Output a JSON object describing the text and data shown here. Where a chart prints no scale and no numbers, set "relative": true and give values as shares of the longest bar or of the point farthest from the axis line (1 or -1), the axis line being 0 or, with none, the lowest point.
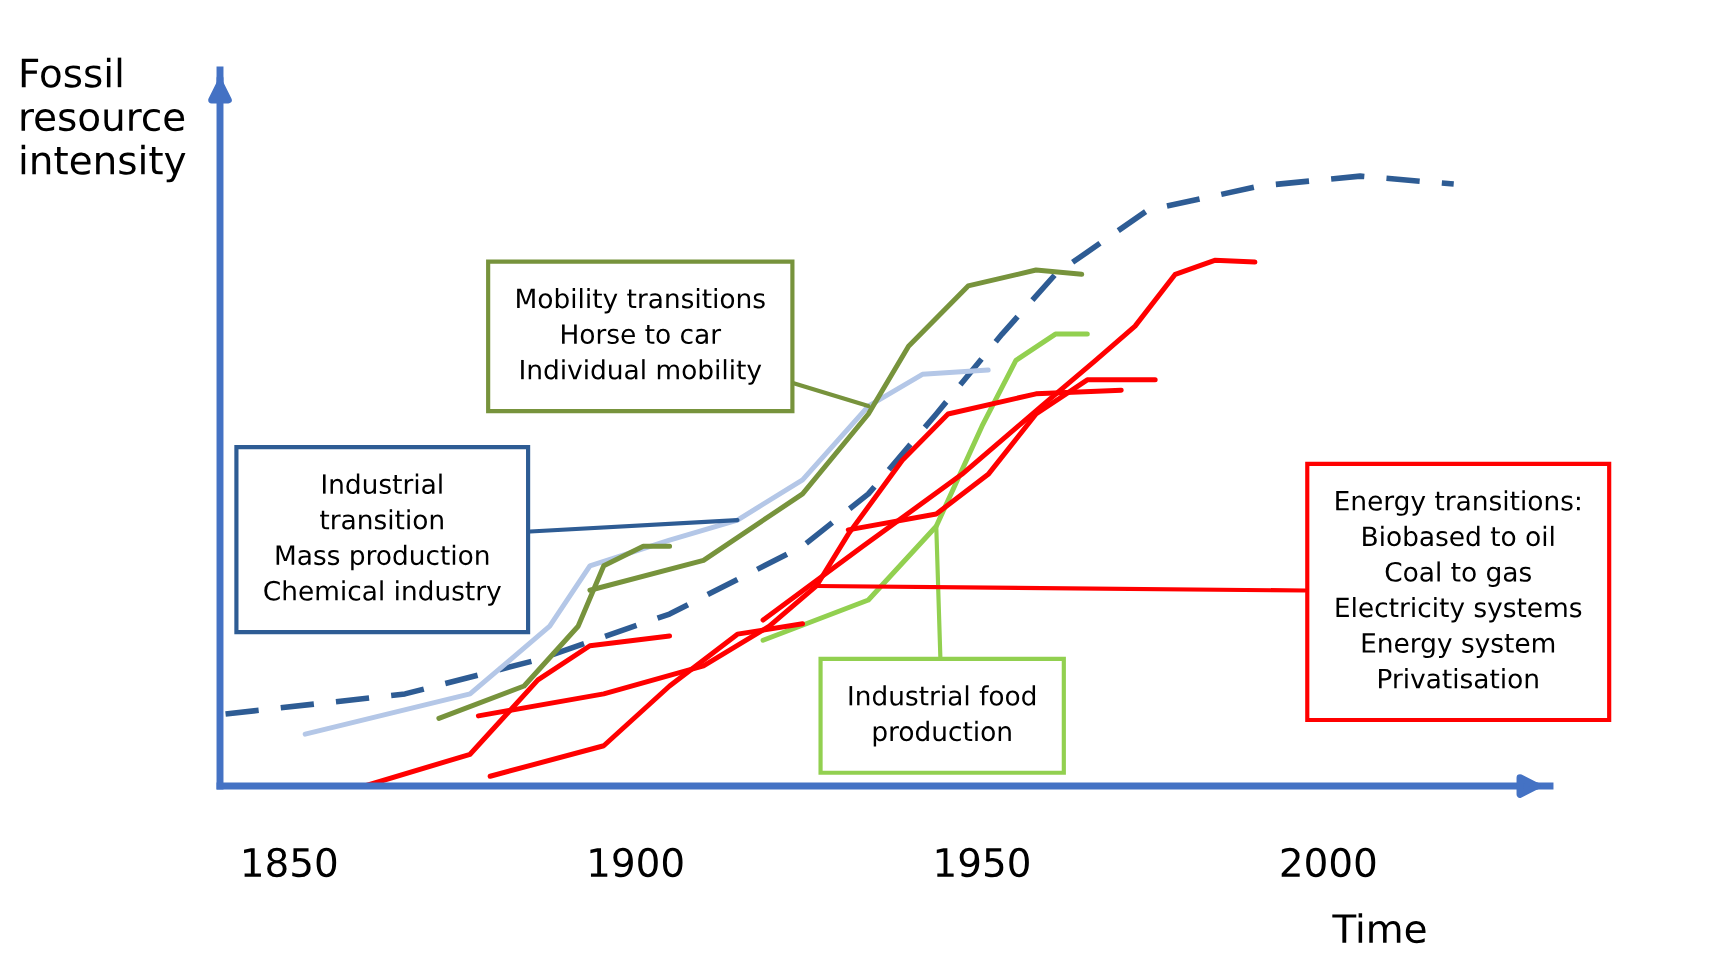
{
  "chart_data": {
    "type": "line",
    "relative": true,
    "xlabel": "Time",
    "ylabel": "Fossil resource intensity",
    "xlim": [
      1840,
      2032
    ],
    "xticks": [
      1850,
      1900,
      1950,
      2000
    ],
    "grid": false,
    "marker": "none",
    "series": [
      {
        "color": "#2e5c94",
        "line_style": "dashed",
        "x": [
          1840.8,
          1866.7,
          1885.9,
          1904.9,
          1924.1,
          1933.6,
          1943.4,
          1952.9,
          1960.6,
          1973.9,
          1990.2,
          2004.6,
          2018.1
        ],
        "values": [
          0.118,
          0.151,
          0.207,
          0.282,
          0.393,
          0.479,
          0.61,
          0.741,
          0.839,
          0.944,
          0.984,
          1.0,
          0.987
        ]
      },
      {
        "color": "#b4c7e7",
        "x": [
          1852.3,
          1876.1,
          1887.6,
          1893.4,
          1904.9,
          1914.7,
          1924.1,
          1933.6,
          1941.4,
          1950.9
        ],
        "values": [
          0.085,
          0.151,
          0.262,
          0.361,
          0.403,
          0.436,
          0.502,
          0.623,
          0.675,
          0.682
        ]
      },
      {
        "color": "#77933c",
        "x": [
          1871.6,
          1883.9,
          1891.7,
          1895.4,
          1901.1,
          1904.9
        ],
        "values": [
          0.111,
          0.164,
          0.262,
          0.361,
          0.393,
          0.393
        ]
      },
      {
        "color": "#77933c",
        "x": [
          1893.4,
          1909.8,
          1924.1,
          1933.6,
          1939.4,
          1948.0,
          1957.8,
          1964.4
        ],
        "values": [
          0.321,
          0.37,
          0.479,
          0.61,
          0.721,
          0.82,
          0.846,
          0.839
        ]
      },
      {
        "color": "#92d050",
        "x": [
          1918.4,
          1933.6,
          1943.4,
          1950.0,
          1954.9,
          1960.6,
          1965.2
        ],
        "values": [
          0.239,
          0.305,
          0.426,
          0.59,
          0.698,
          0.741,
          0.741
        ]
      },
      {
        "color": "#ff0000",
        "x": [
          1860.9,
          1876.1,
          1885.9,
          1893.4,
          1904.9
        ],
        "values": [
          0.0,
          0.052,
          0.174,
          0.23,
          0.246
        ]
      },
      {
        "color": "#ff0000",
        "x": [
          1879.0,
          1895.4,
          1904.9,
          1914.7,
          1924.1
        ],
        "values": [
          0.016,
          0.066,
          0.164,
          0.249,
          0.266
        ]
      },
      {
        "color": "#ff0000",
        "x": [
          1877.3,
          1895.4,
          1909.8,
          1919.3,
          1926.1,
          1930.7,
          1938.5,
          1945.1,
          1957.8,
          1970.1
        ],
        "values": [
          0.115,
          0.151,
          0.197,
          0.262,
          0.328,
          0.413,
          0.534,
          0.61,
          0.643,
          0.649
        ]
      },
      {
        "color": "#ff0000",
        "x": [
          1930.7,
          1943.4,
          1950.9,
          1957.8,
          1965.2,
          1975.0
        ],
        "values": [
          0.42,
          0.446,
          0.511,
          0.61,
          0.666,
          0.666
        ]
      },
      {
        "color": "#ff0000",
        "x": [
          1918.4,
          1932.8,
          1947.1,
          1958.6,
          1966.4,
          1972.1,
          1977.9,
          1983.6,
          1989.4
        ],
        "values": [
          0.272,
          0.393,
          0.511,
          0.623,
          0.698,
          0.754,
          0.839,
          0.862,
          0.859
        ]
      }
    ],
    "annotations": [
      {
        "text": "Mobility transitions\nHorse to car\nIndividual mobility",
        "x": 1933.6,
        "y": 0.623
      },
      {
        "text": "Industrial\ntransition\nMass production\nChemical industry",
        "x": 1914.7,
        "y": 0.436
      },
      {
        "text": "Industrial food\nproduction",
        "x": 1943.4,
        "y": 0.426
      },
      {
        "text": "Energy transitions:\nBiobased to oil\nCoal to gas\nElectricity systems\nEnergy system\nPrivatisation",
        "x": 1926.1,
        "y": 0.328
      }
    ]
  }
}
